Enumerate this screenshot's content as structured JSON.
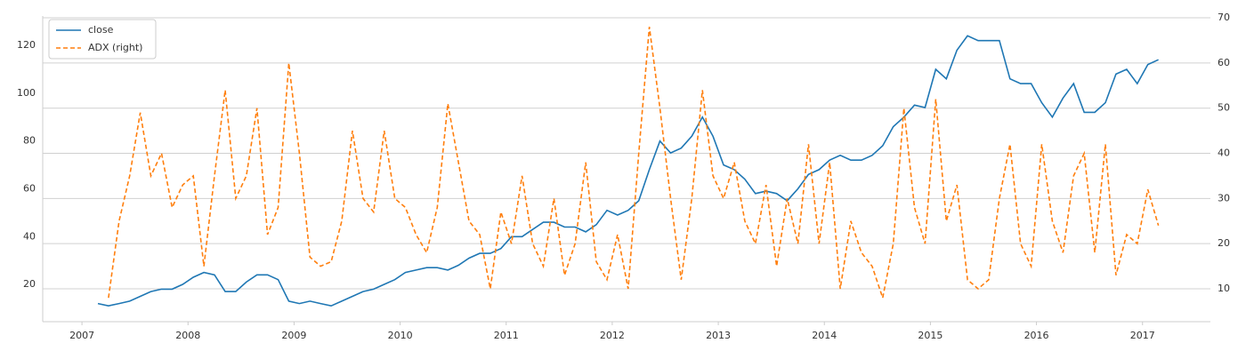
{
  "chart_data": {
    "type": "line",
    "x": [
      2007.15,
      2007.25,
      2007.35,
      2007.45,
      2007.55,
      2007.65,
      2007.75,
      2007.85,
      2007.95,
      2008.05,
      2008.15,
      2008.25,
      2008.35,
      2008.45,
      2008.55,
      2008.65,
      2008.75,
      2008.85,
      2008.95,
      2009.05,
      2009.15,
      2009.25,
      2009.35,
      2009.45,
      2009.55,
      2009.65,
      2009.75,
      2009.85,
      2009.95,
      2010.05,
      2010.15,
      2010.25,
      2010.35,
      2010.45,
      2010.55,
      2010.65,
      2010.75,
      2010.85,
      2010.95,
      2011.05,
      2011.15,
      2011.25,
      2011.35,
      2011.45,
      2011.55,
      2011.65,
      2011.75,
      2011.85,
      2011.95,
      2012.05,
      2012.15,
      2012.25,
      2012.35,
      2012.45,
      2012.55,
      2012.65,
      2012.75,
      2012.85,
      2012.95,
      2013.05,
      2013.15,
      2013.25,
      2013.35,
      2013.45,
      2013.55,
      2013.65,
      2013.75,
      2013.85,
      2013.95,
      2014.05,
      2014.15,
      2014.25,
      2014.35,
      2014.45,
      2014.55,
      2014.65,
      2014.75,
      2014.85,
      2014.95,
      2015.05,
      2015.15,
      2015.25,
      2015.35,
      2015.45,
      2015.55,
      2015.65,
      2015.75,
      2015.85,
      2015.95,
      2016.05,
      2016.15,
      2016.25,
      2016.35,
      2016.45,
      2016.55,
      2016.65,
      2016.75,
      2016.85,
      2016.95,
      2017.05,
      2017.15
    ],
    "series": [
      {
        "name": "close",
        "color": "#1f77b4",
        "values": [
          12,
          11,
          12,
          13,
          15,
          17,
          18,
          18,
          20,
          23,
          25,
          24,
          17,
          17,
          21,
          24,
          24,
          22,
          13,
          12,
          13,
          12,
          11,
          13,
          15,
          17,
          18,
          20,
          22,
          25,
          26,
          27,
          27,
          26,
          28,
          31,
          33,
          33,
          35,
          40,
          40,
          43,
          46,
          46,
          44,
          44,
          42,
          45,
          51,
          49,
          51,
          55,
          68,
          80,
          75,
          77,
          82,
          90,
          82,
          70,
          68,
          64,
          58,
          59,
          58,
          55,
          60,
          66,
          68,
          72,
          74,
          72,
          72,
          74,
          78,
          86,
          90,
          95,
          94,
          110,
          106,
          118,
          124,
          122,
          122,
          122,
          106,
          104,
          104,
          96,
          90,
          98,
          104,
          92,
          92,
          96,
          108,
          110,
          104,
          112,
          114
        ]
      },
      {
        "name": "ADX (right)",
        "color": "#ff7f0e",
        "axis": "y2",
        "dashed": true,
        "values": [
          null,
          8,
          25,
          35,
          49,
          35,
          40,
          28,
          33,
          35,
          15,
          35,
          54,
          30,
          35,
          50,
          22,
          28,
          60,
          40,
          17,
          15,
          16,
          25,
          45,
          30,
          27,
          45,
          30,
          28,
          22,
          18,
          28,
          51,
          38,
          25,
          22,
          10,
          27,
          20,
          35,
          20,
          15,
          30,
          13,
          20,
          38,
          16,
          12,
          22,
          10,
          40,
          68,
          50,
          30,
          12,
          30,
          54,
          35,
          30,
          38,
          25,
          20,
          33,
          15,
          30,
          20,
          42,
          20,
          38,
          10,
          25,
          18,
          15,
          8,
          20,
          50,
          28,
          20,
          52,
          25,
          33,
          12,
          10,
          12,
          30,
          42,
          20,
          15,
          42,
          25,
          18,
          35,
          40,
          18,
          42,
          13,
          22,
          20,
          32,
          24
        ]
      }
    ],
    "xlim": [
      2006.63,
      2017.64
    ],
    "xticks": [
      2007,
      2008,
      2009,
      2010,
      2011,
      2012,
      2013,
      2014,
      2015,
      2016,
      2017
    ],
    "ylim": [
      4.4,
      132.3
    ],
    "yticks": [
      20,
      40,
      60,
      80,
      100,
      120
    ],
    "y2lim": [
      2.72,
      70.4
    ],
    "y2ticks": [
      10,
      20,
      30,
      40,
      50,
      60,
      70
    ],
    "grid": "y2",
    "legend": "upper left"
  }
}
